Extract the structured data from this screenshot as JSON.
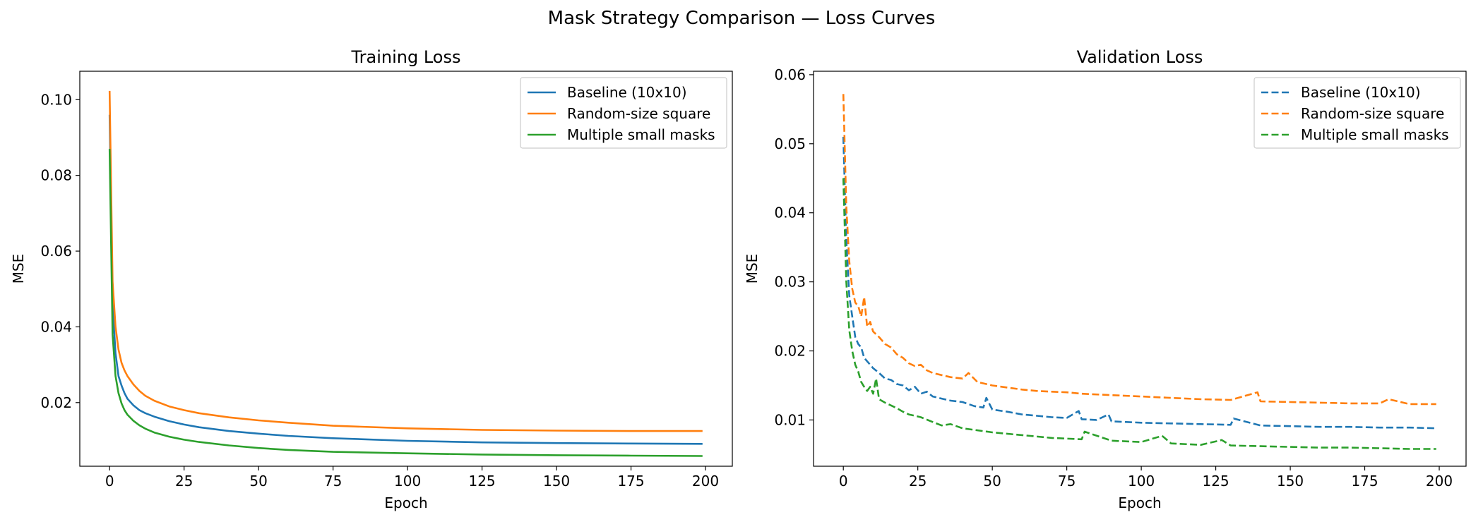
{
  "figure": {
    "title": "Mask Strategy Comparison — Loss Curves"
  },
  "colors": {
    "Baseline (10x10)": "#1f77b4",
    "Random-size square": "#ff7f0e",
    "Multiple small masks": "#2ca02c"
  },
  "chart_data": [
    {
      "type": "line",
      "title": "Training Loss",
      "xlabel": "Epoch",
      "ylabel": "MSE",
      "xlim": [
        -10,
        209
      ],
      "ylim": [
        0.0032,
        0.1075
      ],
      "xticks": [
        0,
        25,
        50,
        75,
        100,
        125,
        150,
        175,
        200
      ],
      "yticks": [
        0.02,
        0.04,
        0.06,
        0.08,
        0.1
      ],
      "ytick_labels": [
        "0.02",
        "0.04",
        "0.06",
        "0.08",
        "0.10"
      ],
      "grid": false,
      "legend": "top-right",
      "line_style": "solid",
      "series": [
        {
          "name": "Baseline (10x10)",
          "x": [
            0,
            1,
            2,
            3,
            4,
            5,
            6,
            8,
            10,
            12,
            15,
            20,
            25,
            30,
            40,
            50,
            60,
            75,
            100,
            125,
            150,
            175,
            199
          ],
          "y": [
            0.096,
            0.046,
            0.033,
            0.027,
            0.0245,
            0.0225,
            0.021,
            0.0193,
            0.018,
            0.0172,
            0.0163,
            0.0151,
            0.0142,
            0.0135,
            0.0125,
            0.0118,
            0.0112,
            0.0106,
            0.0099,
            0.0095,
            0.0093,
            0.0092,
            0.0091
          ]
        },
        {
          "name": "Random-size square",
          "x": [
            0,
            1,
            2,
            3,
            4,
            5,
            6,
            8,
            10,
            12,
            15,
            20,
            25,
            30,
            40,
            50,
            60,
            75,
            100,
            125,
            150,
            175,
            199
          ],
          "y": [
            0.1023,
            0.052,
            0.04,
            0.034,
            0.0305,
            0.0285,
            0.027,
            0.0248,
            0.0231,
            0.0218,
            0.0205,
            0.019,
            0.018,
            0.0172,
            0.0161,
            0.0153,
            0.0147,
            0.0139,
            0.0132,
            0.0128,
            0.0126,
            0.0125,
            0.0125
          ]
        },
        {
          "name": "Multiple small masks",
          "x": [
            0,
            1,
            2,
            3,
            4,
            5,
            6,
            8,
            10,
            12,
            15,
            20,
            25,
            30,
            40,
            50,
            60,
            75,
            100,
            125,
            150,
            175,
            199
          ],
          "y": [
            0.087,
            0.038,
            0.027,
            0.0225,
            0.0198,
            0.018,
            0.0168,
            0.0152,
            0.014,
            0.0131,
            0.0121,
            0.011,
            0.0102,
            0.0096,
            0.0087,
            0.008,
            0.0075,
            0.007,
            0.0066,
            0.0063,
            0.0061,
            0.006,
            0.0059
          ]
        }
      ]
    },
    {
      "type": "line",
      "title": "Validation Loss",
      "xlabel": "Epoch",
      "ylabel": "MSE",
      "xlim": [
        -10,
        209
      ],
      "ylim": [
        0.0033,
        0.0605
      ],
      "xticks": [
        0,
        25,
        50,
        75,
        100,
        125,
        150,
        175,
        200
      ],
      "yticks": [
        0.01,
        0.02,
        0.03,
        0.04,
        0.05,
        0.06
      ],
      "ytick_labels": [
        "0.01",
        "0.02",
        "0.03",
        "0.04",
        "0.05",
        "0.06"
      ],
      "grid": false,
      "legend": "top-right",
      "line_style": "dashed",
      "series": [
        {
          "name": "Baseline (10x10)",
          "x": [
            0,
            1,
            2,
            3,
            4,
            5,
            6,
            7,
            8,
            9,
            10,
            12,
            14,
            16,
            18,
            20,
            22,
            24,
            26,
            28,
            30,
            33,
            36,
            40,
            44,
            47,
            48,
            50,
            55,
            60,
            65,
            70,
            75,
            79,
            80,
            85,
            89,
            90,
            95,
            100,
            110,
            120,
            130,
            131,
            140,
            150,
            160,
            170,
            180,
            190,
            199
          ],
          "y": [
            0.051,
            0.036,
            0.028,
            0.025,
            0.022,
            0.021,
            0.0205,
            0.019,
            0.0185,
            0.018,
            0.0175,
            0.0168,
            0.016,
            0.0158,
            0.0152,
            0.015,
            0.0143,
            0.0148,
            0.0138,
            0.0141,
            0.0134,
            0.0131,
            0.0128,
            0.0126,
            0.012,
            0.0118,
            0.0132,
            0.0115,
            0.0112,
            0.0108,
            0.0106,
            0.0104,
            0.0103,
            0.0113,
            0.0101,
            0.01,
            0.0108,
            0.0098,
            0.0097,
            0.0096,
            0.0095,
            0.0094,
            0.0093,
            0.0102,
            0.0092,
            0.0091,
            0.009,
            0.009,
            0.0089,
            0.0089,
            0.0088
          ]
        },
        {
          "name": "Random-size square",
          "x": [
            0,
            1,
            2,
            3,
            4,
            5,
            6,
            7,
            8,
            9,
            10,
            12,
            14,
            16,
            18,
            20,
            22,
            24,
            26,
            28,
            30,
            33,
            36,
            40,
            42,
            45,
            50,
            55,
            60,
            65,
            70,
            75,
            80,
            90,
            100,
            110,
            120,
            130,
            139,
            140,
            150,
            160,
            170,
            180,
            183,
            190,
            199
          ],
          "y": [
            0.0572,
            0.041,
            0.033,
            0.029,
            0.027,
            0.0265,
            0.025,
            0.0278,
            0.0235,
            0.0242,
            0.0228,
            0.022,
            0.021,
            0.0205,
            0.0195,
            0.019,
            0.0182,
            0.0178,
            0.018,
            0.0172,
            0.0168,
            0.0165,
            0.0162,
            0.016,
            0.0168,
            0.0155,
            0.015,
            0.0147,
            0.0144,
            0.0142,
            0.0141,
            0.014,
            0.0138,
            0.0136,
            0.0134,
            0.0132,
            0.013,
            0.0129,
            0.014,
            0.0127,
            0.0126,
            0.0125,
            0.0124,
            0.0124,
            0.013,
            0.0123,
            0.0123
          ]
        },
        {
          "name": "Multiple small masks",
          "x": [
            0,
            1,
            2,
            3,
            4,
            5,
            6,
            7,
            8,
            9,
            10,
            11,
            12,
            14,
            16,
            18,
            20,
            22,
            24,
            26,
            30,
            33,
            36,
            40,
            45,
            50,
            60,
            70,
            80,
            81,
            90,
            100,
            107,
            110,
            120,
            127,
            130,
            140,
            150,
            160,
            170,
            180,
            190,
            199
          ],
          "y": [
            0.045,
            0.03,
            0.023,
            0.02,
            0.018,
            0.017,
            0.0155,
            0.0148,
            0.0142,
            0.0148,
            0.0138,
            0.016,
            0.013,
            0.0125,
            0.0121,
            0.0117,
            0.0112,
            0.0108,
            0.0106,
            0.0104,
            0.0097,
            0.0092,
            0.0094,
            0.0088,
            0.0085,
            0.0082,
            0.0078,
            0.0074,
            0.0072,
            0.0083,
            0.007,
            0.0068,
            0.0077,
            0.0066,
            0.0064,
            0.0071,
            0.0063,
            0.0062,
            0.0061,
            0.006,
            0.006,
            0.0059,
            0.0058,
            0.0058
          ]
        }
      ]
    }
  ]
}
